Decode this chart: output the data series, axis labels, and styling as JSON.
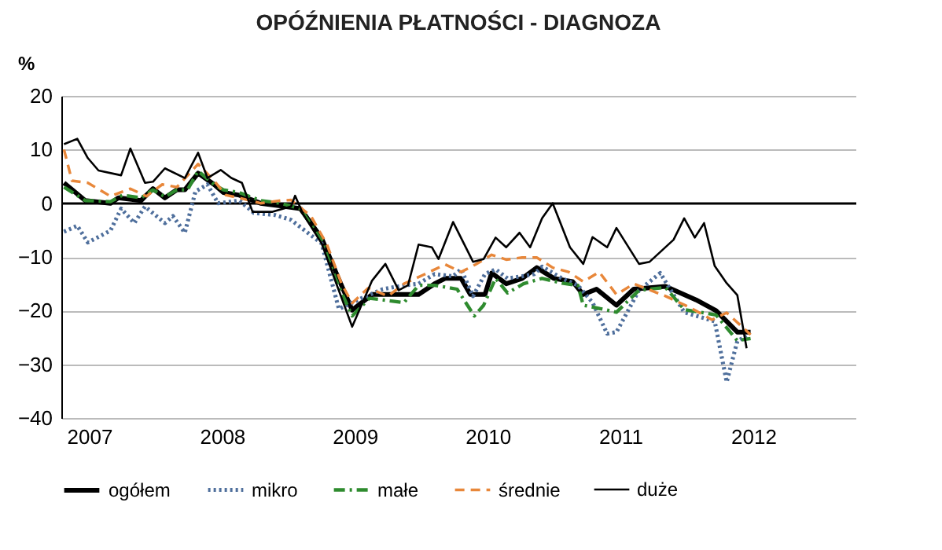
{
  "chart_data": {
    "type": "line",
    "title": "OPÓŹNIENIA PŁATNOŚCI - DIAGNOZA",
    "ylabel": "%",
    "xlim": [
      2006.79,
      2012.77
    ],
    "xticks": [
      2007,
      2008,
      2009,
      2010,
      2011,
      2012
    ],
    "ylim": [
      -40,
      20
    ],
    "yticks": [
      -40,
      -30,
      -20,
      -10,
      0,
      10,
      20
    ],
    "grid": "y",
    "legend": "bottom",
    "marker": "none",
    "series": [
      {
        "name": "ogółem",
        "color": "#000000",
        "line_style": "solid",
        "x": [
          2006.81,
          2006.97,
          2007.16,
          2007.22,
          2007.39,
          2007.48,
          2007.57,
          2007.66,
          2007.72,
          2007.82,
          2007.94,
          2008.01,
          2008.13,
          2008.29,
          2008.44,
          2008.59,
          2008.75,
          2008.87,
          2008.98,
          2009.13,
          2009.3,
          2009.48,
          2009.6,
          2009.68,
          2009.8,
          2009.87,
          2009.98,
          2010.03,
          2010.14,
          2010.26,
          2010.37,
          2010.5,
          2010.64,
          2010.72,
          2010.82,
          2010.97,
          2011.1,
          2011.34,
          2011.57,
          2011.72,
          2011.88,
          2011.98
        ],
        "values": [
          3.8,
          0.5,
          0,
          1,
          0.5,
          2.7,
          1,
          2.5,
          2.5,
          5.6,
          3.5,
          2,
          1.5,
          0,
          -0.5,
          -1,
          -6.5,
          -13.6,
          -19.9,
          -17,
          -17,
          -17,
          -15,
          -14,
          -14,
          -17,
          -17,
          -13,
          -15,
          -14,
          -12,
          -14,
          -14.6,
          -17,
          -16,
          -19,
          -16,
          -15.5,
          -18,
          -20,
          -24,
          -24
        ]
      },
      {
        "name": "mikro",
        "color": "#4f6f9c",
        "line_style": "dotted",
        "x": [
          2006.81,
          2006.91,
          2006.99,
          2007.16,
          2007.24,
          2007.34,
          2007.42,
          2007.57,
          2007.63,
          2007.72,
          2007.8,
          2007.89,
          2007.97,
          2008.13,
          2008.24,
          2008.4,
          2008.52,
          2008.75,
          2008.88,
          2009.05,
          2009.21,
          2009.37,
          2009.48,
          2009.6,
          2009.74,
          2009.8,
          2009.89,
          2009.98,
          2010.06,
          2010.15,
          2010.26,
          2010.35,
          2010.41,
          2010.56,
          2010.68,
          2010.79,
          2010.9,
          2010.97,
          2011.14,
          2011.3,
          2011.48,
          2011.71,
          2011.8,
          2011.88,
          2011.95
        ],
        "values": [
          -5.3,
          -4.2,
          -7.3,
          -5.1,
          -1,
          -3.7,
          -0.6,
          -3.7,
          -2.4,
          -5.5,
          2.2,
          3.5,
          0,
          0.5,
          -1.8,
          -2.2,
          -3.1,
          -7.5,
          -19.7,
          -17.7,
          -16,
          -15.3,
          -15,
          -13.2,
          -13.6,
          -12.3,
          -17.3,
          -13.2,
          -12.3,
          -14,
          -13.6,
          -13.2,
          -11.8,
          -14,
          -15.3,
          -18.5,
          -24.3,
          -24,
          -16.2,
          -13,
          -20.3,
          -22,
          -33.3,
          -25.7,
          -24.7
        ]
      },
      {
        "name": "małe",
        "color": "#2e8b2e",
        "line_style": "dashdot",
        "x": [
          2006.81,
          2006.97,
          2007.16,
          2007.25,
          2007.39,
          2007.48,
          2007.57,
          2007.66,
          2007.74,
          2007.82,
          2007.94,
          2008.01,
          2008.13,
          2008.29,
          2008.44,
          2008.59,
          2008.75,
          2008.87,
          2008.98,
          2009.11,
          2009.37,
          2009.48,
          2009.6,
          2009.77,
          2009.9,
          2009.97,
          2010.06,
          2010.15,
          2010.27,
          2010.41,
          2010.56,
          2010.68,
          2010.72,
          2010.9,
          2010.97,
          2011.14,
          2011.34,
          2011.48,
          2011.72,
          2011.88,
          2011.98
        ],
        "values": [
          3,
          0.5,
          0.3,
          1.5,
          1,
          2.5,
          1.2,
          2.5,
          2.5,
          6,
          3.5,
          2.5,
          2,
          0.5,
          0,
          -1,
          -7,
          -15,
          -21,
          -17.7,
          -18.5,
          -15.3,
          -15.3,
          -16,
          -21,
          -19,
          -14,
          -16.7,
          -15,
          -14,
          -14.9,
          -15.3,
          -19,
          -19.9,
          -20.3,
          -16.2,
          -15.7,
          -19.8,
          -20.8,
          -25.6,
          -25.2
        ]
      },
      {
        "name": "średnie",
        "color": "#e8873a",
        "line_style": "dashed",
        "x": [
          2006.81,
          2006.87,
          2006.99,
          2007.16,
          2007.31,
          2007.43,
          2007.55,
          2007.66,
          2007.82,
          2007.94,
          2008.03,
          2008.13,
          2008.29,
          2008.44,
          2008.52,
          2008.67,
          2008.79,
          2008.9,
          2008.98,
          2009.1,
          2009.25,
          2009.37,
          2009.52,
          2009.68,
          2009.8,
          2009.91,
          2010.03,
          2010.14,
          2010.26,
          2010.37,
          2010.49,
          2010.61,
          2010.72,
          2010.84,
          2010.97,
          2011.1,
          2011.34,
          2011.53,
          2011.69,
          2011.8,
          2011.92,
          2011.98
        ],
        "values": [
          10,
          4.2,
          3.8,
          1.3,
          2.7,
          1.3,
          3.5,
          3,
          7.3,
          4.2,
          1.5,
          1,
          0,
          0.5,
          0.6,
          -2.4,
          -7.7,
          -15,
          -18.6,
          -15.8,
          -17.3,
          -15,
          -13.3,
          -11.4,
          -12.8,
          -11.4,
          -9.6,
          -10.5,
          -10.1,
          -10.1,
          -12,
          -12.8,
          -14.6,
          -12.8,
          -17,
          -15,
          -17.3,
          -19.5,
          -21.7,
          -20.4,
          -23.1,
          -24.5
        ]
      },
      {
        "name": "duże",
        "color": "#000000",
        "line_style": "solid",
        "x": [
          2006.81,
          2006.91,
          2006.99,
          2007.07,
          2007.24,
          2007.31,
          2007.42,
          2007.48,
          2007.57,
          2007.72,
          2007.82,
          2007.89,
          2007.99,
          2008.07,
          2008.15,
          2008.23,
          2008.38,
          2008.52,
          2008.55,
          2008.61,
          2008.75,
          2008.87,
          2008.98,
          2009.13,
          2009.23,
          2009.33,
          2009.4,
          2009.48,
          2009.58,
          2009.63,
          2009.74,
          2009.89,
          2009.97,
          2010.06,
          2010.14,
          2010.24,
          2010.32,
          2010.41,
          2010.49,
          2010.62,
          2010.72,
          2010.79,
          2010.9,
          2010.97,
          2011.14,
          2011.22,
          2011.4,
          2011.48,
          2011.56,
          2011.63,
          2011.71,
          2011.8,
          2011.88,
          2011.95
        ],
        "values": [
          11,
          12,
          8.4,
          6.1,
          5.2,
          10.2,
          3.8,
          4,
          6.5,
          4.7,
          9.4,
          4.7,
          6.2,
          4.7,
          3.8,
          -1.6,
          -1.6,
          -0.6,
          1.4,
          -2,
          -7.5,
          -15.6,
          -23,
          -14.4,
          -11.3,
          -16.2,
          -15.3,
          -7.7,
          -8.2,
          -10.4,
          -3.5,
          -10.9,
          -10.4,
          -6.4,
          -8.2,
          -5.5,
          -8.2,
          -2.8,
          0,
          -8.2,
          -11.3,
          -6.3,
          -8.2,
          -4.6,
          -11.3,
          -10.9,
          -6.8,
          -2.8,
          -6.4,
          -3.7,
          -11.7,
          -14.9,
          -17.1,
          -27
        ]
      }
    ]
  }
}
